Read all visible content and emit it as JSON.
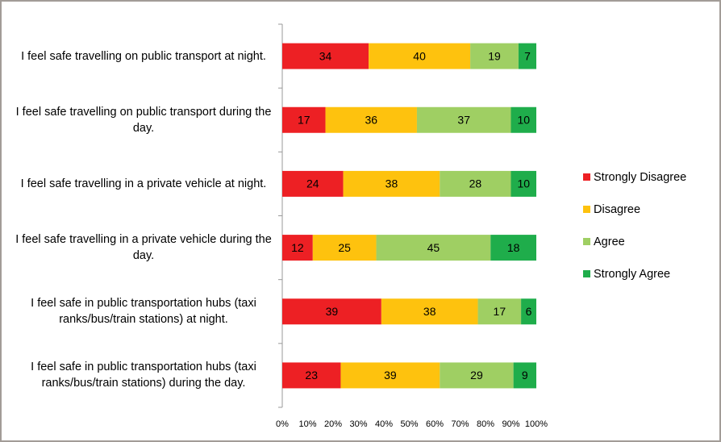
{
  "chart_data": {
    "type": "stacked-bar-horizontal",
    "categories": [
      "I feel safe travelling on public transport at night.",
      "I feel safe travelling on public transport during the day.",
      "I feel safe travelling in a private vehicle at night.",
      "I feel safe travelling in a private vehicle during the day.",
      "I feel safe in public transportation hubs (taxi ranks/bus/train stations) at night.",
      "I feel safe in public transportation hubs (taxi ranks/bus/train stations) during the day."
    ],
    "series": [
      {
        "name": "Strongly Disagree",
        "color": "#ed2024",
        "values": [
          34,
          17,
          24,
          12,
          39,
          23
        ]
      },
      {
        "name": "Disagree",
        "color": "#fec20e",
        "values": [
          40,
          36,
          38,
          25,
          38,
          39
        ]
      },
      {
        "name": "Agree",
        "color": "#9fcf63",
        "values": [
          19,
          37,
          28,
          45,
          17,
          29
        ]
      },
      {
        "name": "Strongly Agree",
        "color": "#1fad4b",
        "values": [
          7,
          10,
          10,
          18,
          6,
          9
        ]
      }
    ],
    "xlim": [
      0,
      100
    ],
    "xticks": [
      {
        "value": 0,
        "label": "0%"
      },
      {
        "value": 10,
        "label": "10%"
      },
      {
        "value": 20,
        "label": "20%"
      },
      {
        "value": 30,
        "label": "30%"
      },
      {
        "value": 40,
        "label": "40%"
      },
      {
        "value": 50,
        "label": "50%"
      },
      {
        "value": 60,
        "label": "60%"
      },
      {
        "value": 70,
        "label": "70%"
      },
      {
        "value": 80,
        "label": "80%"
      },
      {
        "value": 90,
        "label": "90%"
      },
      {
        "value": 100,
        "label": "100%"
      }
    ],
    "legend": "right"
  }
}
